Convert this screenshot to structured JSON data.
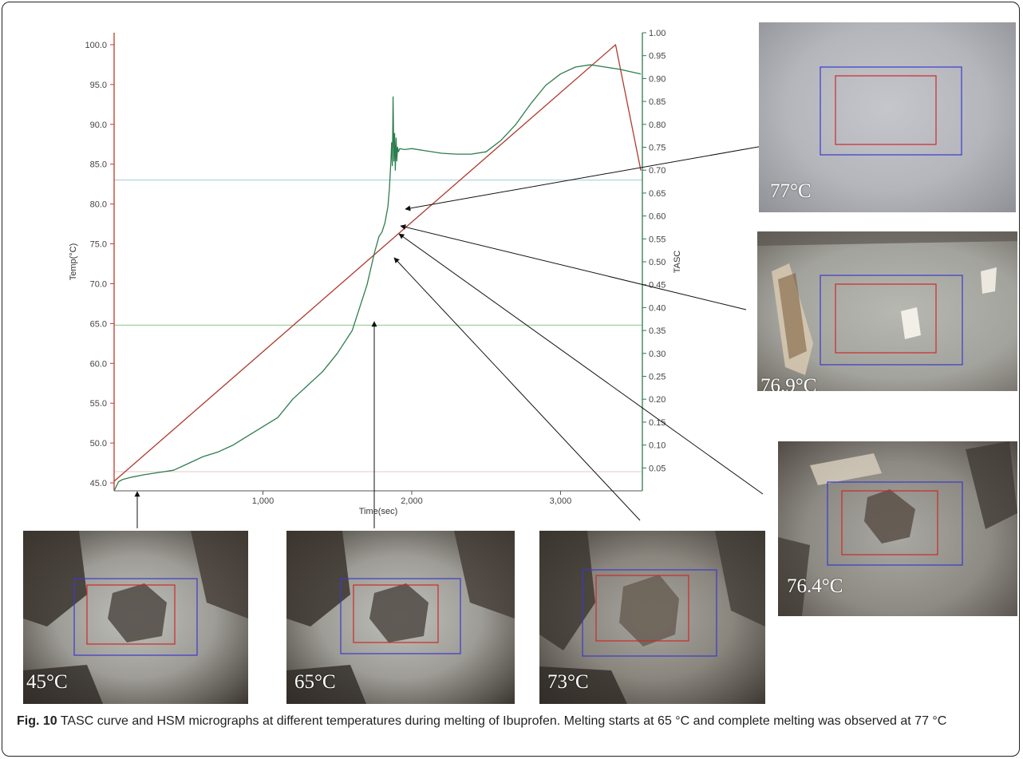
{
  "figure": {
    "caption_number": "Fig. 10",
    "caption_text": "TASC curve and HSM micrographs at different temperatures during melting of Ibuprofen. Melting starts at 65 °C and complete melting was observed at 77 °C"
  },
  "colors": {
    "temp_line": "#b03a2e",
    "tasc_line": "#2e7d4f",
    "left_axis": "#c0392b",
    "right_axis": "#2e7d4f",
    "ref_cyan": "#9ec9df",
    "ref_green": "#8cc78c",
    "ref_pink": "#e2c8c8",
    "roi_outer": "#3a3acc",
    "roi_inner": "#cc2a2a"
  },
  "chart_data": {
    "type": "line",
    "xlabel": "Time(sec)",
    "ylabel_left": "Temp(°C)",
    "ylabel_right": "TASC",
    "xlim": [
      0,
      3550
    ],
    "ylim_left": [
      44,
      101.5
    ],
    "ylim_right": [
      0.0,
      1.0
    ],
    "x_ticks": [
      {
        "value": 1000,
        "label": "1,000"
      },
      {
        "value": 2000,
        "label": "2,000"
      },
      {
        "value": 3000,
        "label": "3,000"
      }
    ],
    "y_left_ticks": [
      {
        "value": 45,
        "label": "45.0"
      },
      {
        "value": 50,
        "label": "50.0"
      },
      {
        "value": 55,
        "label": "55.0"
      },
      {
        "value": 60,
        "label": "60.0"
      },
      {
        "value": 65,
        "label": "65.0"
      },
      {
        "value": 70,
        "label": "70.0"
      },
      {
        "value": 75,
        "label": "75.0"
      },
      {
        "value": 80,
        "label": "80.0"
      },
      {
        "value": 85,
        "label": "85.0"
      },
      {
        "value": 90,
        "label": "90.0"
      },
      {
        "value": 95,
        "label": "95.0"
      },
      {
        "value": 100,
        "label": "100.0"
      }
    ],
    "y_right_ticks": [
      {
        "value": 0.05,
        "label": "0.05"
      },
      {
        "value": 0.1,
        "label": "0.10"
      },
      {
        "value": 0.15,
        "label": "0.15"
      },
      {
        "value": 0.2,
        "label": "0.20"
      },
      {
        "value": 0.25,
        "label": "0.25"
      },
      {
        "value": 0.3,
        "label": "0.30"
      },
      {
        "value": 0.35,
        "label": "0.35"
      },
      {
        "value": 0.4,
        "label": "0.40"
      },
      {
        "value": 0.45,
        "label": "0.45"
      },
      {
        "value": 0.5,
        "label": "0.50"
      },
      {
        "value": 0.55,
        "label": "0.55"
      },
      {
        "value": 0.6,
        "label": "0.60"
      },
      {
        "value": 0.65,
        "label": "0.65"
      },
      {
        "value": 0.7,
        "label": "0.70"
      },
      {
        "value": 0.75,
        "label": "0.75"
      },
      {
        "value": 0.8,
        "label": "0.80"
      },
      {
        "value": 0.85,
        "label": "0.85"
      },
      {
        "value": 0.9,
        "label": "0.90"
      },
      {
        "value": 0.95,
        "label": "0.95"
      },
      {
        "value": 1.0,
        "label": "1.00"
      }
    ],
    "reference_lines_left": [
      {
        "value": 83.0,
        "color": "#9ec9df"
      },
      {
        "value": 64.8,
        "color": "#8cc78c"
      },
      {
        "value": 46.4,
        "color": "#e2c8c8"
      }
    ],
    "series": [
      {
        "axis": "left",
        "color": "#b03a2e",
        "x": [
          0,
          3370,
          3540
        ],
        "y": [
          45.2,
          100.0,
          84.2
        ]
      },
      {
        "axis": "right",
        "color": "#2e7d4f",
        "x": [
          0,
          30,
          60,
          120,
          200,
          300,
          400,
          500,
          600,
          700,
          800,
          900,
          1000,
          1100,
          1200,
          1300,
          1400,
          1500,
          1600,
          1650,
          1700,
          1750,
          1780,
          1800,
          1820,
          1840,
          1850,
          1860,
          1865,
          1870,
          1875,
          1880,
          1885,
          1890,
          1895,
          1900,
          1905,
          1910,
          1920,
          1950,
          2000,
          2100,
          2200,
          2300,
          2400,
          2500,
          2600,
          2700,
          2800,
          2900,
          3000,
          3100,
          3200,
          3300,
          3400,
          3540
        ],
        "y": [
          0.0,
          0.02,
          0.025,
          0.03,
          0.035,
          0.04,
          0.045,
          0.06,
          0.075,
          0.085,
          0.1,
          0.12,
          0.14,
          0.16,
          0.2,
          0.23,
          0.26,
          0.3,
          0.35,
          0.4,
          0.45,
          0.52,
          0.555,
          0.565,
          0.585,
          0.62,
          0.66,
          0.72,
          0.76,
          0.71,
          0.86,
          0.72,
          0.78,
          0.7,
          0.77,
          0.72,
          0.75,
          0.74,
          0.747,
          0.745,
          0.747,
          0.742,
          0.737,
          0.735,
          0.735,
          0.74,
          0.765,
          0.8,
          0.845,
          0.885,
          0.91,
          0.925,
          0.93,
          0.925,
          0.92,
          0.91
        ]
      }
    ]
  },
  "micrographs": [
    {
      "id": "m77",
      "label": "77°C",
      "molten": true
    },
    {
      "id": "m769",
      "label": "76.9°C",
      "molten": false
    },
    {
      "id": "m764",
      "label": "76.4°C",
      "molten": false
    },
    {
      "id": "m73",
      "label": "73°C",
      "molten": false
    },
    {
      "id": "m65",
      "label": "65°C",
      "molten": false
    },
    {
      "id": "m45",
      "label": "45°C",
      "molten": false
    }
  ]
}
